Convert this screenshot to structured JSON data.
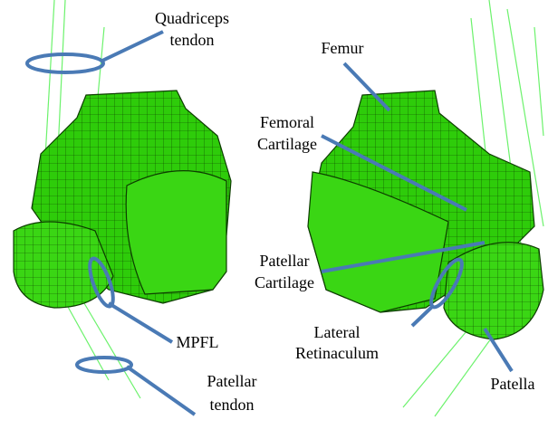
{
  "labels": [
    {
      "lines": [
        "Quadriceps",
        "tendon"
      ]
    },
    {
      "lines": [
        "Femur"
      ]
    },
    {
      "lines": [
        "Femoral",
        "Cartilage"
      ]
    },
    {
      "lines": [
        "Patellar",
        "Cartilage"
      ]
    },
    {
      "lines": [
        "MPFL"
      ]
    },
    {
      "lines": [
        "Patellar",
        "tendon"
      ]
    },
    {
      "lines": [
        "Lateral",
        "Retinaculum"
      ]
    },
    {
      "lines": [
        "Patella"
      ]
    }
  ]
}
